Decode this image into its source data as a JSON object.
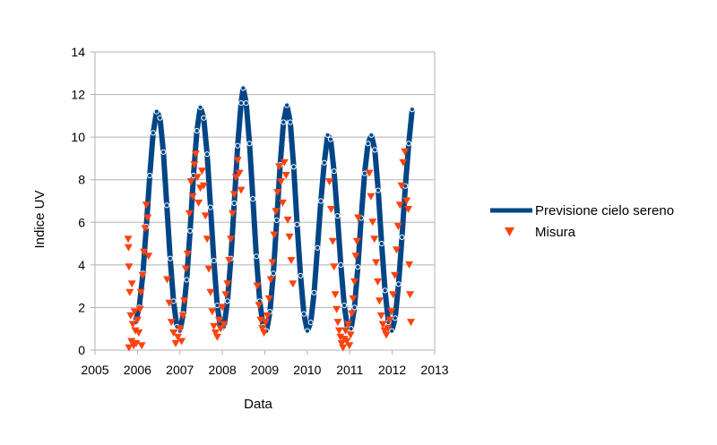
{
  "chart_data": {
    "type": "scatter",
    "title": "",
    "xlabel": "Data",
    "ylabel": "Indice UV",
    "xlim": [
      2005,
      2013
    ],
    "ylim": [
      0,
      14
    ],
    "x_ticks": [
      2005,
      2006,
      2007,
      2008,
      2009,
      2010,
      2011,
      2012,
      2013
    ],
    "y_ticks": [
      0,
      2,
      4,
      6,
      8,
      10,
      12,
      14
    ],
    "grid": "horizontal",
    "legend_position": "right",
    "series": [
      {
        "name": "Previsione cielo sereno",
        "kind": "line",
        "color": "#004586",
        "points": [
          [
            2005.95,
            1.3
          ],
          [
            2006.04,
            2.0
          ],
          [
            2006.13,
            3.6
          ],
          [
            2006.21,
            5.8
          ],
          [
            2006.29,
            8.2
          ],
          [
            2006.37,
            10.2
          ],
          [
            2006.45,
            11.2
          ],
          [
            2006.53,
            10.9
          ],
          [
            2006.61,
            9.3
          ],
          [
            2006.69,
            6.8
          ],
          [
            2006.77,
            4.3
          ],
          [
            2006.85,
            2.3
          ],
          [
            2006.93,
            1.1
          ],
          [
            2007.0,
            0.9
          ],
          [
            2007.08,
            1.7
          ],
          [
            2007.16,
            3.3
          ],
          [
            2007.24,
            5.6
          ],
          [
            2007.32,
            8.2
          ],
          [
            2007.4,
            10.3
          ],
          [
            2007.48,
            11.4
          ],
          [
            2007.56,
            10.9
          ],
          [
            2007.64,
            9.2
          ],
          [
            2007.72,
            6.7
          ],
          [
            2007.8,
            4.2
          ],
          [
            2007.88,
            2.1
          ],
          [
            2007.96,
            1.0
          ],
          [
            2008.04,
            1.1
          ],
          [
            2008.12,
            2.3
          ],
          [
            2008.2,
            4.3
          ],
          [
            2008.28,
            6.9
          ],
          [
            2008.36,
            9.6
          ],
          [
            2008.44,
            11.6
          ],
          [
            2008.49,
            12.3
          ],
          [
            2008.56,
            11.6
          ],
          [
            2008.64,
            9.7
          ],
          [
            2008.72,
            7.1
          ],
          [
            2008.8,
            4.4
          ],
          [
            2008.88,
            2.3
          ],
          [
            2008.96,
            1.1
          ],
          [
            2009.04,
            0.9
          ],
          [
            2009.12,
            1.8
          ],
          [
            2009.2,
            3.6
          ],
          [
            2009.28,
            6.1
          ],
          [
            2009.36,
            8.7
          ],
          [
            2009.44,
            10.7
          ],
          [
            2009.52,
            11.5
          ],
          [
            2009.6,
            10.7
          ],
          [
            2009.68,
            8.6
          ],
          [
            2009.76,
            5.9
          ],
          [
            2009.84,
            3.5
          ],
          [
            2009.92,
            1.7
          ],
          [
            2010.0,
            0.9
          ],
          [
            2010.08,
            1.3
          ],
          [
            2010.16,
            2.7
          ],
          [
            2010.24,
            4.8
          ],
          [
            2010.32,
            7.0
          ],
          [
            2010.4,
            8.8
          ],
          [
            2010.48,
            10.1
          ],
          [
            2010.55,
            9.9
          ],
          [
            2010.63,
            8.4
          ],
          [
            2010.71,
            6.3
          ],
          [
            2010.79,
            4.0
          ],
          [
            2010.87,
            2.1
          ],
          [
            2010.95,
            1.0
          ],
          [
            2011.03,
            1.0
          ],
          [
            2011.11,
            2.0
          ],
          [
            2011.19,
            3.9
          ],
          [
            2011.27,
            6.2
          ],
          [
            2011.35,
            8.3
          ],
          [
            2011.43,
            9.7
          ],
          [
            2011.51,
            10.1
          ],
          [
            2011.59,
            9.4
          ],
          [
            2011.67,
            7.5
          ],
          [
            2011.75,
            5.0
          ],
          [
            2011.83,
            2.8
          ],
          [
            2011.91,
            1.3
          ],
          [
            2011.99,
            0.9
          ],
          [
            2012.07,
            1.5
          ],
          [
            2012.15,
            3.1
          ],
          [
            2012.23,
            5.3
          ],
          [
            2012.31,
            7.7
          ],
          [
            2012.39,
            9.7
          ],
          [
            2012.47,
            11.3
          ]
        ]
      },
      {
        "name": "Misura",
        "kind": "scatter",
        "marker": "triangle-down",
        "color": "#ff420e",
        "points": [
          [
            2005.78,
            5.2
          ],
          [
            2005.79,
            4.8
          ],
          [
            2005.8,
            3.9
          ],
          [
            2005.8,
            0.1
          ],
          [
            2005.82,
            2.7
          ],
          [
            2005.84,
            1.6
          ],
          [
            2005.86,
            0.4
          ],
          [
            2005.87,
            3.1
          ],
          [
            2005.89,
            1.2
          ],
          [
            2005.91,
            0.2
          ],
          [
            2005.93,
            1.8
          ],
          [
            2005.95,
            0.9
          ],
          [
            2005.97,
            0.3
          ],
          [
            2006.0,
            1.4
          ],
          [
            2006.03,
            0.8
          ],
          [
            2006.06,
            1.9
          ],
          [
            2006.08,
            2.7
          ],
          [
            2006.1,
            0.2
          ],
          [
            2006.12,
            3.5
          ],
          [
            2006.15,
            4.6
          ],
          [
            2006.18,
            5.7
          ],
          [
            2006.21,
            6.8
          ],
          [
            2006.24,
            6.2
          ],
          [
            2006.26,
            4.4
          ],
          [
            2006.7,
            3.3
          ],
          [
            2006.75,
            2.2
          ],
          [
            2006.8,
            1.3
          ],
          [
            2006.85,
            0.8
          ],
          [
            2006.9,
            0.3
          ],
          [
            2006.95,
            0.6
          ],
          [
            2007.0,
            1.0
          ],
          [
            2007.04,
            0.4
          ],
          [
            2007.07,
            1.6
          ],
          [
            2007.1,
            2.3
          ],
          [
            2007.14,
            3.8
          ],
          [
            2007.18,
            4.5
          ],
          [
            2007.22,
            6.4
          ],
          [
            2007.26,
            7.9
          ],
          [
            2007.3,
            7.2
          ],
          [
            2007.34,
            8.7
          ],
          [
            2007.37,
            9.2
          ],
          [
            2007.41,
            8.1
          ],
          [
            2007.44,
            6.9
          ],
          [
            2007.48,
            7.6
          ],
          [
            2007.52,
            8.4
          ],
          [
            2007.56,
            7.7
          ],
          [
            2007.6,
            6.3
          ],
          [
            2007.64,
            5.2
          ],
          [
            2007.68,
            3.8
          ],
          [
            2007.72,
            2.7
          ],
          [
            2007.76,
            1.8
          ],
          [
            2007.8,
            1.1
          ],
          [
            2007.84,
            0.8
          ],
          [
            2007.88,
            0.6
          ],
          [
            2007.92,
            1.4
          ],
          [
            2007.96,
            1.0
          ],
          [
            2008.0,
            2.0
          ],
          [
            2008.04,
            1.2
          ],
          [
            2008.08,
            2.6
          ],
          [
            2008.12,
            3.1
          ],
          [
            2008.16,
            4.2
          ],
          [
            2008.2,
            5.2
          ],
          [
            2008.24,
            6.4
          ],
          [
            2008.28,
            7.3
          ],
          [
            2008.32,
            8.1
          ],
          [
            2008.36,
            8.9
          ],
          [
            2008.4,
            8.3
          ],
          [
            2008.44,
            7.5
          ],
          [
            2008.82,
            3.0
          ],
          [
            2008.86,
            2.1
          ],
          [
            2008.9,
            1.4
          ],
          [
            2008.94,
            1.0
          ],
          [
            2008.98,
            0.8
          ],
          [
            2009.02,
            1.3
          ],
          [
            2009.06,
            1.6
          ],
          [
            2009.1,
            2.4
          ],
          [
            2009.14,
            3.3
          ],
          [
            2009.18,
            4.1
          ],
          [
            2009.22,
            5.4
          ],
          [
            2009.26,
            6.5
          ],
          [
            2009.3,
            7.4
          ],
          [
            2009.34,
            8.6
          ],
          [
            2009.38,
            7.9
          ],
          [
            2009.42,
            6.9
          ],
          [
            2009.46,
            8.8
          ],
          [
            2009.5,
            8.2
          ],
          [
            2009.54,
            6.1
          ],
          [
            2009.58,
            5.3
          ],
          [
            2009.62,
            4.2
          ],
          [
            2009.66,
            3.1
          ],
          [
            2010.52,
            7.9
          ],
          [
            2010.56,
            6.6
          ],
          [
            2010.6,
            5.1
          ],
          [
            2010.63,
            3.9
          ],
          [
            2010.66,
            2.6
          ],
          [
            2010.69,
            1.9
          ],
          [
            2010.72,
            1.3
          ],
          [
            2010.75,
            0.9
          ],
          [
            2010.78,
            0.6
          ],
          [
            2010.81,
            0.3
          ],
          [
            2010.84,
            0.1
          ],
          [
            2010.87,
            0.5
          ],
          [
            2010.9,
            0.9
          ],
          [
            2010.93,
            0.4
          ],
          [
            2010.96,
            1.2
          ],
          [
            2010.99,
            0.2
          ],
          [
            2011.02,
            0.7
          ],
          [
            2011.05,
            1.7
          ],
          [
            2011.08,
            2.4
          ],
          [
            2011.11,
            3.2
          ],
          [
            2011.14,
            4.4
          ],
          [
            2011.17,
            5.1
          ],
          [
            2011.2,
            6.2
          ],
          [
            2011.46,
            8.3
          ],
          [
            2011.5,
            7.2
          ],
          [
            2011.54,
            6.0
          ],
          [
            2011.58,
            5.2
          ],
          [
            2011.62,
            4.1
          ],
          [
            2011.66,
            3.2
          ],
          [
            2011.7,
            2.3
          ],
          [
            2011.74,
            1.6
          ],
          [
            2011.78,
            1.2
          ],
          [
            2011.82,
            0.9
          ],
          [
            2011.86,
            0.7
          ],
          [
            2011.9,
            1.0
          ],
          [
            2011.94,
            1.4
          ],
          [
            2011.98,
            1.8
          ],
          [
            2012.02,
            2.6
          ],
          [
            2012.06,
            3.5
          ],
          [
            2012.1,
            4.7
          ],
          [
            2012.14,
            5.8
          ],
          [
            2012.18,
            6.8
          ],
          [
            2012.22,
            7.7
          ],
          [
            2012.26,
            8.8
          ],
          [
            2012.3,
            9.3
          ],
          [
            2012.34,
            7.0
          ],
          [
            2012.38,
            6.6
          ],
          [
            2012.4,
            4.0
          ],
          [
            2012.42,
            2.6
          ],
          [
            2012.44,
            1.3
          ]
        ]
      }
    ]
  }
}
